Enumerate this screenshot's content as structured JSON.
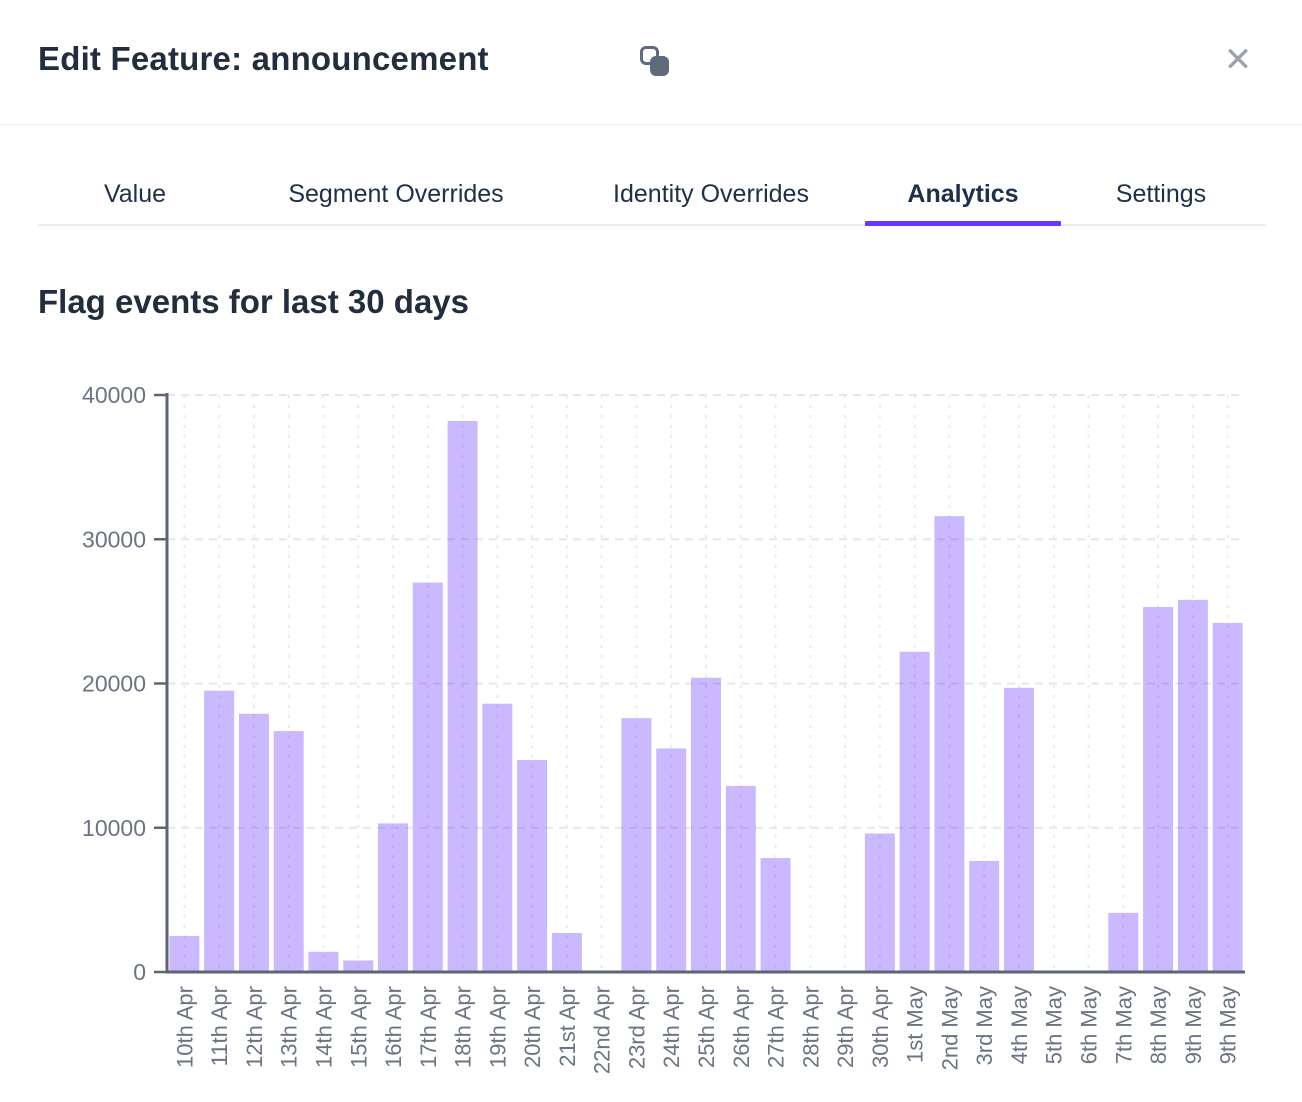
{
  "modal": {
    "title": "Edit Feature: announcement",
    "close_label": "✕"
  },
  "tabs": [
    {
      "label": "Value",
      "active": false
    },
    {
      "label": "Segment Overrides",
      "active": false
    },
    {
      "label": "Identity Overrides",
      "active": false
    },
    {
      "label": "Analytics",
      "active": true
    },
    {
      "label": "Settings",
      "active": false
    }
  ],
  "section": {
    "title": "Flag events for last 30 days"
  },
  "colors": {
    "accent_purple": "#6837fc",
    "bar_fill": "#6837fc",
    "bar_opacity": 0.35,
    "axis_line": "#5d6571",
    "tick_label": "#6b7482",
    "grid_line": "#e7e7ea",
    "heading_text": "#222d3d",
    "muted_icon": "#9aa4b0"
  },
  "chart_data": {
    "type": "bar",
    "title": "Flag events for last 30 days",
    "categories": [
      "10th Apr",
      "11th Apr",
      "12th Apr",
      "13th Apr",
      "14th Apr",
      "15th Apr",
      "16th Apr",
      "17th Apr",
      "18th Apr",
      "19th Apr",
      "20th Apr",
      "21st Apr",
      "22nd Apr",
      "23rd Apr",
      "24th Apr",
      "25th Apr",
      "26th Apr",
      "27th Apr",
      "28th Apr",
      "29th Apr",
      "30th Apr",
      "1st May",
      "2nd May",
      "3rd May",
      "4th May",
      "5th May",
      "6th May",
      "7th May",
      "8th May",
      "9th May",
      "9th May"
    ],
    "values": [
      2500,
      19500,
      17900,
      16700,
      1400,
      800,
      10300,
      27000,
      38200,
      18600,
      14700,
      2700,
      0,
      17600,
      15500,
      20400,
      12900,
      7900,
      0,
      0,
      9600,
      22200,
      31600,
      7700,
      19700,
      0,
      0,
      4100,
      25300,
      25800,
      24200
    ],
    "xlabel": "",
    "ylabel": "",
    "ylim": [
      0,
      40000
    ],
    "yticks": [
      0,
      10000,
      20000,
      30000,
      40000
    ],
    "grid": true,
    "legend": false
  }
}
